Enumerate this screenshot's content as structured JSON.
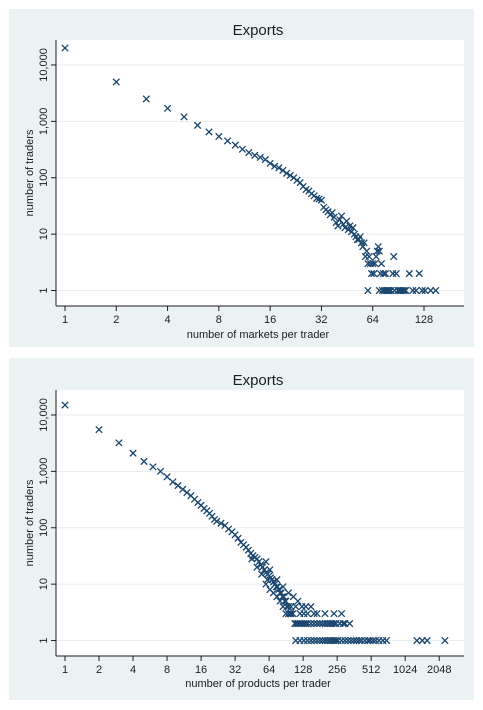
{
  "colors": {
    "panel_background": "#eaf2f3",
    "plot_background": "#ffffff",
    "marker": "#1a476f",
    "text": "#1e1e1e"
  },
  "chart_data": [
    {
      "type": "scatter",
      "title": "Exports",
      "xlabel": "number of markets per trader",
      "ylabel": "number of traders",
      "x_scale": "log2",
      "y_scale": "log10",
      "xlim": [
        1,
        170
      ],
      "ylim": [
        0.8,
        20000
      ],
      "x_ticks": [
        1,
        2,
        4,
        8,
        16,
        32,
        64,
        128
      ],
      "x_tick_labels": [
        "1",
        "2",
        "4",
        "8",
        "16",
        "32",
        "64",
        "128"
      ],
      "y_ticks": [
        1,
        10,
        100,
        1000,
        10000
      ],
      "y_tick_labels": [
        "1",
        "10",
        "100",
        "1,000",
        "10,000"
      ],
      "grid": true,
      "marker": "x",
      "series": [
        {
          "values": [
            [
              1,
              20000
            ],
            [
              2,
              5000
            ],
            [
              3,
              2500
            ],
            [
              4,
              1700
            ],
            [
              5,
              1200
            ],
            [
              6,
              850
            ],
            [
              7,
              650
            ],
            [
              8,
              540
            ],
            [
              9,
              450
            ],
            [
              10,
              380
            ],
            [
              11,
              320
            ],
            [
              12,
              280
            ],
            [
              13,
              250
            ],
            [
              14,
              230
            ],
            [
              15,
              210
            ],
            [
              16,
              180
            ],
            [
              17,
              160
            ],
            [
              18,
              150
            ],
            [
              19,
              135
            ],
            [
              20,
              120
            ],
            [
              21,
              110
            ],
            [
              22,
              100
            ],
            [
              23,
              90
            ],
            [
              24,
              82
            ],
            [
              25,
              70
            ],
            [
              26,
              62
            ],
            [
              27,
              58
            ],
            [
              28,
              52
            ],
            [
              29,
              48
            ],
            [
              30,
              43
            ],
            [
              31,
              42
            ],
            [
              32,
              40
            ],
            [
              33,
              30
            ],
            [
              34,
              27
            ],
            [
              35,
              25
            ],
            [
              36,
              22
            ],
            [
              37,
              24
            ],
            [
              38,
              20
            ],
            [
              39,
              16
            ],
            [
              40,
              14
            ],
            [
              41,
              18
            ],
            [
              42,
              21
            ],
            [
              43,
              15
            ],
            [
              44,
              13
            ],
            [
              45,
              17
            ],
            [
              46,
              12
            ],
            [
              47,
              14
            ],
            [
              48,
              11
            ],
            [
              49,
              13
            ],
            [
              50,
              10
            ],
            [
              51,
              9
            ],
            [
              52,
              8
            ],
            [
              53,
              8
            ],
            [
              54,
              9
            ],
            [
              55,
              7
            ],
            [
              56,
              6
            ],
            [
              57,
              7
            ],
            [
              58,
              4
            ],
            [
              59,
              5
            ],
            [
              60,
              3
            ],
            [
              61,
              4
            ],
            [
              62,
              3
            ],
            [
              63,
              2
            ],
            [
              64,
              3
            ],
            [
              65,
              2
            ],
            [
              66,
              3
            ],
            [
              67,
              4
            ],
            [
              68,
              5
            ],
            [
              69,
              6
            ],
            [
              70,
              5
            ],
            [
              71,
              2
            ],
            [
              72,
              3
            ],
            [
              73,
              1
            ],
            [
              74,
              2
            ],
            [
              75,
              1
            ],
            [
              76,
              2
            ],
            [
              77,
              1
            ],
            [
              78,
              1
            ],
            [
              79,
              1
            ],
            [
              80,
              1
            ],
            [
              82,
              1
            ],
            [
              84,
              2
            ],
            [
              85,
              4
            ],
            [
              86,
              1
            ],
            [
              88,
              2
            ],
            [
              90,
              1
            ],
            [
              92,
              1
            ],
            [
              94,
              1
            ],
            [
              96,
              1
            ],
            [
              98,
              1
            ],
            [
              100,
              1
            ],
            [
              105,
              2
            ],
            [
              110,
              1
            ],
            [
              115,
              1
            ],
            [
              120,
              2
            ],
            [
              125,
              1
            ],
            [
              130,
              1
            ],
            [
              140,
              1
            ],
            [
              150,
              1
            ],
            [
              60,
              1
            ],
            [
              70,
              1
            ]
          ]
        }
      ]
    },
    {
      "type": "scatter",
      "title": "Exports",
      "xlabel": "number of products per trader",
      "ylabel": "number of traders",
      "x_scale": "log2",
      "y_scale": "log10",
      "xlim": [
        1,
        2500
      ],
      "ylim": [
        0.8,
        20000
      ],
      "x_ticks": [
        1,
        2,
        4,
        8,
        16,
        32,
        64,
        128,
        256,
        512,
        1024,
        2048
      ],
      "x_tick_labels": [
        "1",
        "2",
        "4",
        "8",
        "16",
        "32",
        "64",
        "128",
        "256",
        "512",
        "1024",
        "2048"
      ],
      "y_ticks": [
        1,
        10,
        100,
        1000,
        10000
      ],
      "y_tick_labels": [
        "1",
        "10",
        "100",
        "1,000",
        "10,000"
      ],
      "grid": true,
      "marker": "x",
      "series": [
        {
          "values": [
            [
              1,
              15000
            ],
            [
              2,
              5500
            ],
            [
              3,
              3200
            ],
            [
              4,
              2100
            ],
            [
              5,
              1500
            ],
            [
              6,
              1200
            ],
            [
              7,
              1000
            ],
            [
              8,
              800
            ],
            [
              9,
              650
            ],
            [
              10,
              560
            ],
            [
              11,
              480
            ],
            [
              12,
              420
            ],
            [
              13,
              370
            ],
            [
              14,
              320
            ],
            [
              15,
              280
            ],
            [
              16,
              250
            ],
            [
              17,
              220
            ],
            [
              18,
              200
            ],
            [
              19,
              180
            ],
            [
              20,
              160
            ],
            [
              21,
              140
            ],
            [
              22,
              130
            ],
            [
              24,
              120
            ],
            [
              26,
              110
            ],
            [
              28,
              95
            ],
            [
              30,
              85
            ],
            [
              32,
              75
            ],
            [
              34,
              65
            ],
            [
              36,
              55
            ],
            [
              38,
              50
            ],
            [
              40,
              45
            ],
            [
              42,
              40
            ],
            [
              44,
              35
            ],
            [
              46,
              32
            ],
            [
              48,
              30
            ],
            [
              50,
              28
            ],
            [
              52,
              25
            ],
            [
              54,
              22
            ],
            [
              56,
              20
            ],
            [
              58,
              18
            ],
            [
              60,
              16
            ],
            [
              62,
              15
            ],
            [
              64,
              14
            ],
            [
              66,
              13
            ],
            [
              68,
              12
            ],
            [
              70,
              11
            ],
            [
              72,
              10
            ],
            [
              74,
              9
            ],
            [
              76,
              9
            ],
            [
              78,
              8
            ],
            [
              80,
              7
            ],
            [
              82,
              7
            ],
            [
              84,
              6
            ],
            [
              86,
              6
            ],
            [
              88,
              5
            ],
            [
              90,
              5
            ],
            [
              92,
              4
            ],
            [
              95,
              4
            ],
            [
              98,
              3
            ],
            [
              100,
              3
            ],
            [
              104,
              3
            ],
            [
              108,
              2
            ],
            [
              112,
              2
            ],
            [
              116,
              2
            ],
            [
              120,
              2
            ],
            [
              125,
              2
            ],
            [
              130,
              2
            ],
            [
              135,
              2
            ],
            [
              140,
              2
            ],
            [
              150,
              2
            ],
            [
              160,
              2
            ],
            [
              170,
              2
            ],
            [
              180,
              2
            ],
            [
              190,
              2
            ],
            [
              200,
              2
            ],
            [
              210,
              2
            ],
            [
              220,
              2
            ],
            [
              230,
              2
            ],
            [
              240,
              2
            ],
            [
              250,
              2
            ],
            [
              270,
              2
            ],
            [
              290,
              2
            ],
            [
              300,
              2
            ],
            [
              55,
              15
            ],
            [
              60,
              10
            ],
            [
              65,
              8
            ],
            [
              70,
              7
            ],
            [
              75,
              6
            ],
            [
              80,
              5
            ],
            [
              85,
              4
            ],
            [
              90,
              3
            ],
            [
              95,
              3
            ],
            [
              100,
              4
            ],
            [
              110,
              4
            ],
            [
              120,
              3
            ],
            [
              130,
              3
            ],
            [
              140,
              3
            ],
            [
              150,
              4
            ],
            [
              170,
              3
            ],
            [
              60,
              25
            ],
            [
              65,
              18
            ],
            [
              50,
              20
            ],
            [
              45,
              28
            ],
            [
              62,
              12
            ],
            [
              75,
              12
            ],
            [
              85,
              9
            ],
            [
              95,
              7
            ],
            [
              105,
              6
            ],
            [
              115,
              5
            ],
            [
              125,
              4
            ],
            [
              135,
              4
            ],
            [
              160,
              3
            ],
            [
              200,
              3
            ],
            [
              240,
              3
            ],
            [
              280,
              3
            ],
            [
              330,
              2
            ],
            [
              110,
              1
            ],
            [
              120,
              1
            ],
            [
              130,
              1
            ],
            [
              140,
              1
            ],
            [
              150,
              1
            ],
            [
              160,
              1
            ],
            [
              170,
              1
            ],
            [
              180,
              1
            ],
            [
              190,
              1
            ],
            [
              200,
              1
            ],
            [
              210,
              1
            ],
            [
              220,
              1
            ],
            [
              230,
              1
            ],
            [
              240,
              1
            ],
            [
              250,
              1
            ],
            [
              260,
              1
            ],
            [
              280,
              1
            ],
            [
              300,
              1
            ],
            [
              320,
              1
            ],
            [
              340,
              1
            ],
            [
              360,
              1
            ],
            [
              380,
              1
            ],
            [
              400,
              1
            ],
            [
              420,
              1
            ],
            [
              450,
              1
            ],
            [
              480,
              1
            ],
            [
              500,
              1
            ],
            [
              530,
              1
            ],
            [
              560,
              1
            ],
            [
              600,
              1
            ],
            [
              650,
              1
            ],
            [
              700,
              1
            ],
            [
              1300,
              1
            ],
            [
              1450,
              1
            ],
            [
              1600,
              1
            ],
            [
              2300,
              1
            ]
          ]
        }
      ]
    }
  ]
}
